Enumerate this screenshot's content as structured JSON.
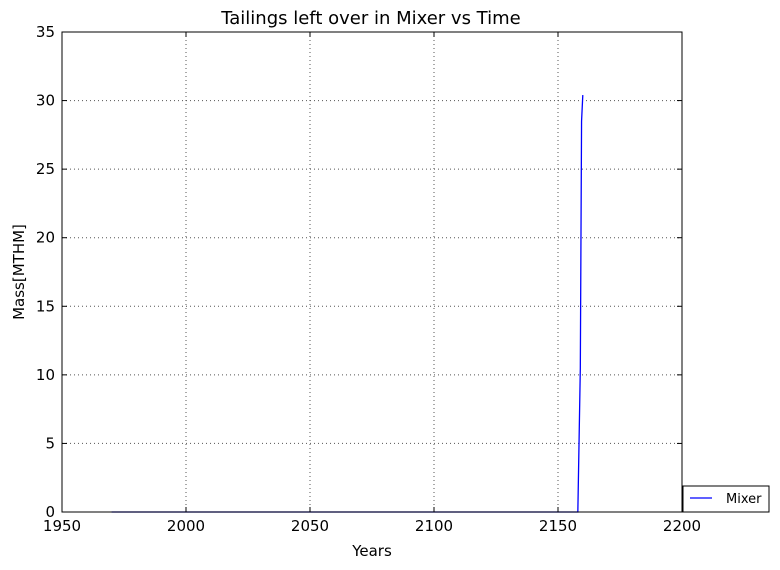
{
  "chart_data": {
    "type": "line",
    "title": "Tailings left over in Mixer vs Time",
    "xlabel": "Years",
    "ylabel": "Mass[MTHM]",
    "xlim": [
      1950,
      2200
    ],
    "ylim": [
      0,
      35
    ],
    "xticks": [
      "1950",
      "2000",
      "2050",
      "2100",
      "2150",
      "2200"
    ],
    "yticks": [
      "0",
      "5",
      "10",
      "15",
      "20",
      "25",
      "30",
      "35"
    ],
    "grid": true,
    "legend_placement": "bottom-right, outside plot",
    "series": [
      {
        "name": "Mixer",
        "color": "#0000ff",
        "x": [
          1970,
          2000,
          2050,
          2100,
          2150,
          2158,
          2159,
          2159.5,
          2160
        ],
        "y": [
          0,
          0,
          0,
          0,
          0,
          0,
          10.5,
          28.5,
          30.4
        ]
      }
    ]
  }
}
